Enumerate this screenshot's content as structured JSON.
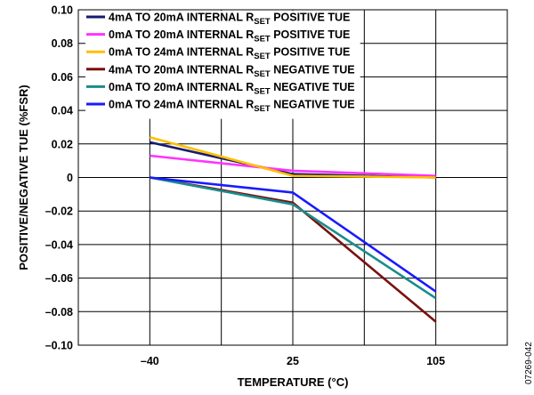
{
  "chart_data": {
    "type": "line",
    "xlabel": "TEMPERATURE (°C)",
    "ylabel": "POSITIVE/NEGATIVE TUE (%FSR)",
    "categories": [
      "–40",
      "25",
      "105"
    ],
    "x": [
      -40,
      25,
      105
    ],
    "ylim": [
      -0.1,
      0.1
    ],
    "yticks": [
      0.1,
      0.08,
      0.06,
      0.04,
      0.02,
      0,
      -0.02,
      -0.04,
      -0.06,
      -0.08,
      -0.1
    ],
    "ytick_labels": [
      "0.10",
      "0.08",
      "0.06",
      "0.04",
      "0.02",
      "0",
      "–0.02",
      "–0.04",
      "–0.06",
      "–0.08",
      "–0.10"
    ],
    "grid": true,
    "legend_position": "top",
    "series": [
      {
        "name_pre": "4mA TO 20mA INTERNAL R",
        "name_sub": "SET",
        "name_post": " POSITIVE TUE",
        "color": "#1a1a6e",
        "values": [
          0.021,
          0.002,
          0.0
        ]
      },
      {
        "name_pre": "0mA TO 20mA INTERNAL R",
        "name_sub": "SET",
        "name_post": " POSITIVE TUE",
        "color": "#ff33ff",
        "values": [
          0.013,
          0.004,
          0.001
        ]
      },
      {
        "name_pre": "0mA TO 24mA INTERNAL R",
        "name_sub": "SET",
        "name_post": " POSITIVE TUE",
        "color": "#ffbf00",
        "values": [
          0.024,
          0.001,
          0.0
        ]
      },
      {
        "name_pre": "4mA TO 20mA INTERNAL R",
        "name_sub": "SET",
        "name_post": " NEGATIVE TUE",
        "color": "#7a1010",
        "values": [
          0.0,
          -0.015,
          -0.086
        ]
      },
      {
        "name_pre": "0mA TO 20mA INTERNAL R",
        "name_sub": "SET",
        "name_post": " NEGATIVE TUE",
        "color": "#1a8c8c",
        "values": [
          0.0,
          -0.016,
          -0.072
        ]
      },
      {
        "name_pre": "0mA TO 24mA INTERNAL R",
        "name_sub": "SET",
        "name_post": " NEGATIVE TUE",
        "color": "#1a1aff",
        "values": [
          0.0,
          -0.009,
          -0.068
        ]
      }
    ]
  },
  "figure_id": "07269-042"
}
